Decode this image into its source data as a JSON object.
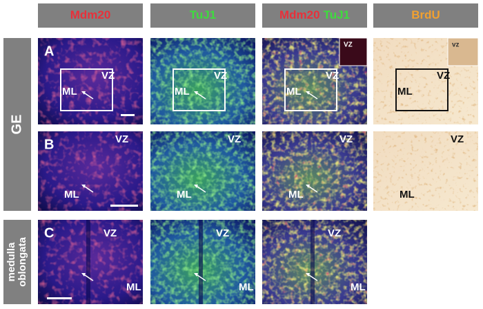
{
  "column_headers": [
    {
      "parts": [
        "Mdm20"
      ]
    },
    {
      "parts": [
        "TuJ1"
      ]
    },
    {
      "parts": [
        "Mdm20",
        "TuJ1"
      ]
    },
    {
      "parts": [
        "BrdU"
      ]
    }
  ],
  "row_headers": [
    {
      "lines": [
        "GE"
      ]
    },
    {
      "lines": [
        "medulla",
        "oblongata"
      ]
    }
  ],
  "panels": [
    {
      "letter": "A",
      "images": [
        {
          "labels": [
            "VZ",
            "ML"
          ]
        },
        {
          "labels": [
            "VZ",
            "ML"
          ]
        },
        {
          "labels": [
            "VZ",
            "ML"
          ],
          "inset": "VZ"
        },
        {
          "labels": [
            "VZ",
            "ML"
          ],
          "inset": "vz"
        }
      ]
    },
    {
      "letter": "B",
      "images": [
        {
          "labels": [
            "VZ",
            "ML"
          ]
        },
        {
          "labels": [
            "VZ",
            "ML"
          ]
        },
        {
          "labels": [
            "VZ",
            "ML"
          ]
        },
        {
          "labels": [
            "VZ",
            "ML"
          ]
        }
      ]
    },
    {
      "letter": "C",
      "images": [
        {
          "labels": [
            "VZ",
            "ML"
          ]
        },
        {
          "labels": [
            "VZ",
            "ML"
          ]
        },
        {
          "labels": [
            "VZ",
            "ML"
          ]
        }
      ]
    }
  ]
}
